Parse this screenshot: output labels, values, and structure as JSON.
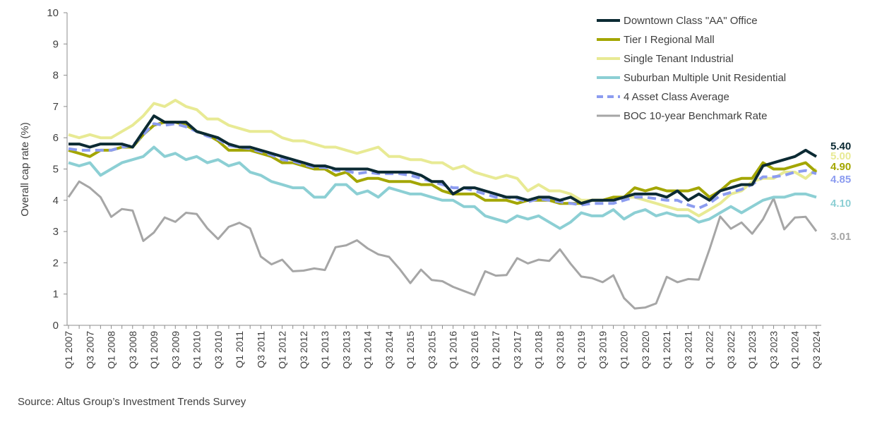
{
  "chart_data": {
    "type": "line",
    "title": "",
    "xlabel": "",
    "ylabel": "Overall cap rate (%)",
    "ylim": [
      0,
      10
    ],
    "y_ticks": [
      0,
      1,
      2,
      3,
      4,
      5,
      6,
      7,
      8,
      9,
      10
    ],
    "x_start": "Q1 2007",
    "x_end": "Q3 2024",
    "x_tick_labels": [
      "Q1 2007",
      "Q3 2007",
      "Q1 2008",
      "Q3 2008",
      "Q1 2009",
      "Q3 2009",
      "Q1 2010",
      "Q3 2010",
      "Q1 2011",
      "Q3 2011",
      "Q1 2012",
      "Q3 2012",
      "Q1 2013",
      "Q3 2013",
      "Q1 2014",
      "Q3 2014",
      "Q1 2015",
      "Q3 2015",
      "Q1 2016",
      "Q3 2016",
      "Q1 2017",
      "Q3 2017",
      "Q1 2018",
      "Q3 2018",
      "Q1 2019",
      "Q3 2019",
      "Q1 2020",
      "Q3 2020",
      "Q1 2021",
      "Q3 2021",
      "Q1 2022",
      "Q3 2022",
      "Q1 2023",
      "Q3 2023",
      "Q1 2024",
      "Q3 2024"
    ],
    "grid": false,
    "legend_placement": "top-right",
    "series": [
      {
        "name": "Downtown Class \"AA\" Office",
        "color": "#0b2a33",
        "dash": false,
        "end_label": "5.40",
        "values": [
          5.8,
          5.8,
          5.7,
          5.8,
          5.8,
          5.8,
          5.7,
          6.2,
          6.7,
          6.5,
          6.5,
          6.5,
          6.2,
          6.1,
          6.0,
          5.8,
          5.7,
          5.7,
          5.6,
          5.5,
          5.4,
          5.3,
          5.2,
          5.1,
          5.1,
          5.0,
          5.0,
          5.0,
          5.0,
          4.9,
          4.9,
          4.9,
          4.9,
          4.8,
          4.6,
          4.6,
          4.2,
          4.4,
          4.4,
          4.3,
          4.2,
          4.1,
          4.1,
          4.0,
          4.1,
          4.1,
          4.0,
          4.1,
          3.9,
          4.0,
          4.0,
          4.0,
          4.1,
          4.2,
          4.2,
          4.2,
          4.1,
          4.3,
          4.0,
          4.2,
          4.0,
          4.3,
          4.4,
          4.5,
          4.5,
          5.1,
          5.2,
          5.3,
          5.4,
          5.6,
          5.4
        ]
      },
      {
        "name": "Tier I Regional Mall",
        "color": "#a3a600",
        "dash": false,
        "end_label": "4.90",
        "values": [
          5.6,
          5.5,
          5.4,
          5.6,
          5.6,
          5.7,
          5.7,
          6.1,
          6.4,
          6.5,
          6.5,
          6.4,
          6.2,
          6.1,
          5.9,
          5.6,
          5.6,
          5.6,
          5.5,
          5.4,
          5.2,
          5.2,
          5.1,
          5.0,
          5.0,
          4.8,
          4.9,
          4.6,
          4.7,
          4.7,
          4.6,
          4.6,
          4.6,
          4.5,
          4.5,
          4.3,
          4.2,
          4.2,
          4.2,
          4.0,
          4.0,
          4.0,
          3.9,
          4.0,
          4.0,
          4.0,
          3.9,
          3.9,
          3.9,
          4.0,
          4.0,
          4.1,
          4.1,
          4.4,
          4.3,
          4.4,
          4.3,
          4.3,
          4.3,
          4.4,
          4.1,
          4.3,
          4.6,
          4.7,
          4.7,
          5.2,
          5.0,
          5.0,
          5.1,
          5.2,
          4.9
        ]
      },
      {
        "name": "Single Tenant Industrial",
        "color": "#e8ea94",
        "dash": false,
        "end_label": "5.00",
        "values": [
          6.1,
          6.0,
          6.1,
          6.0,
          6.0,
          6.2,
          6.4,
          6.7,
          7.1,
          7.0,
          7.2,
          7.0,
          6.9,
          6.6,
          6.6,
          6.4,
          6.3,
          6.2,
          6.2,
          6.2,
          6.0,
          5.9,
          5.9,
          5.8,
          5.7,
          5.7,
          5.6,
          5.5,
          5.6,
          5.7,
          5.4,
          5.4,
          5.3,
          5.3,
          5.2,
          5.2,
          5.0,
          5.1,
          4.9,
          4.8,
          4.7,
          4.8,
          4.7,
          4.3,
          4.5,
          4.3,
          4.3,
          4.2,
          4.0,
          4.0,
          4.0,
          4.1,
          4.1,
          4.1,
          4.0,
          3.9,
          3.8,
          3.7,
          3.7,
          3.5,
          3.7,
          3.9,
          4.2,
          4.3,
          4.6,
          4.7,
          4.7,
          4.9,
          4.9,
          4.7,
          5.0
        ]
      },
      {
        "name": "Suburban Multiple Unit Residential",
        "color": "#8ccfd4",
        "dash": false,
        "end_label": "4.10",
        "values": [
          5.2,
          5.1,
          5.2,
          4.8,
          5.0,
          5.2,
          5.3,
          5.4,
          5.7,
          5.4,
          5.5,
          5.3,
          5.4,
          5.2,
          5.3,
          5.1,
          5.2,
          4.9,
          4.8,
          4.6,
          4.5,
          4.4,
          4.4,
          4.1,
          4.1,
          4.5,
          4.5,
          4.2,
          4.3,
          4.1,
          4.4,
          4.3,
          4.2,
          4.2,
          4.1,
          4.0,
          4.0,
          3.8,
          3.8,
          3.5,
          3.4,
          3.3,
          3.5,
          3.4,
          3.5,
          3.3,
          3.1,
          3.3,
          3.6,
          3.5,
          3.5,
          3.7,
          3.4,
          3.6,
          3.7,
          3.5,
          3.6,
          3.5,
          3.5,
          3.3,
          3.4,
          3.6,
          3.8,
          3.6,
          3.8,
          4.0,
          4.1,
          4.1,
          4.2,
          4.2,
          4.1
        ]
      },
      {
        "name": "4 Asset Class Average",
        "color": "#8c9cf0",
        "dash": true,
        "end_label": "4.85",
        "values": [
          5.65,
          5.6,
          5.6,
          5.6,
          5.6,
          5.7,
          5.75,
          6.1,
          6.45,
          6.4,
          6.45,
          6.35,
          6.2,
          6.05,
          5.95,
          5.75,
          5.7,
          5.65,
          5.55,
          5.45,
          5.3,
          5.25,
          5.15,
          5.05,
          5.05,
          4.95,
          4.95,
          4.85,
          4.9,
          4.85,
          4.85,
          4.85,
          4.8,
          4.7,
          4.6,
          4.5,
          4.4,
          4.4,
          4.3,
          4.2,
          4.1,
          4.1,
          4.05,
          3.95,
          4.05,
          4.0,
          3.95,
          3.9,
          3.85,
          3.9,
          3.9,
          3.9,
          4.0,
          4.1,
          4.1,
          4.05,
          4.0,
          4.0,
          3.85,
          3.75,
          3.9,
          4.15,
          4.25,
          4.35,
          4.5,
          4.75,
          4.75,
          4.8,
          4.9,
          4.95,
          4.85
        ]
      },
      {
        "name": "BOC 10-year Benchmark Rate",
        "color": "#a6a6a6",
        "dash": false,
        "end_label": "3.01",
        "values": [
          4.1,
          4.6,
          4.4,
          4.1,
          3.47,
          3.72,
          3.67,
          2.7,
          2.97,
          3.45,
          3.31,
          3.6,
          3.56,
          3.1,
          2.76,
          3.15,
          3.28,
          3.1,
          2.2,
          1.95,
          2.1,
          1.73,
          1.75,
          1.82,
          1.77,
          2.5,
          2.56,
          2.72,
          2.46,
          2.27,
          2.19,
          1.8,
          1.35,
          1.78,
          1.45,
          1.41,
          1.23,
          1.1,
          0.97,
          1.73,
          1.59,
          1.61,
          2.15,
          1.98,
          2.1,
          2.06,
          2.43,
          1.97,
          1.56,
          1.51,
          1.38,
          1.6,
          0.87,
          0.54,
          0.57,
          0.7,
          1.55,
          1.38,
          1.48,
          1.46,
          2.43,
          3.48,
          3.09,
          3.29,
          2.93,
          3.39,
          4.06,
          3.07,
          3.45,
          3.47,
          3.01
        ]
      }
    ]
  },
  "source": "Source:  Altus Group’s Investment Trends Survey"
}
